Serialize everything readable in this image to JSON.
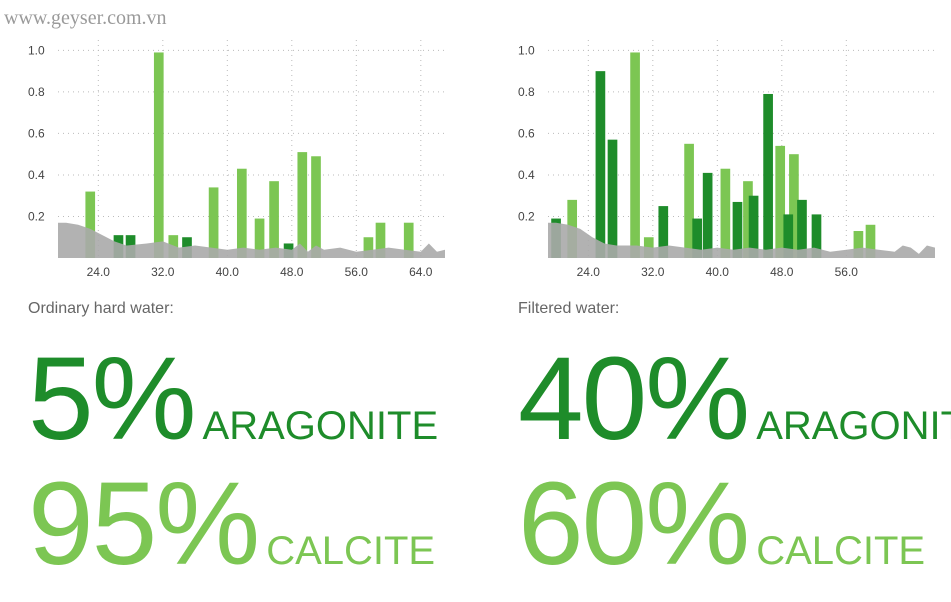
{
  "watermark": "www.geyser.com.vn",
  "colors": {
    "dark_green": "#1e8c2a",
    "light_green": "#7cc653",
    "baseline_gray": "#aaaaaa",
    "grid": "#bbbbbb"
  },
  "panels": [
    {
      "caption": "Ordinary hard water:",
      "stats": [
        {
          "value": "5%",
          "label": "ARAGONITE",
          "color": "#1e8c2a"
        },
        {
          "value": "95%",
          "label": "CALCITE",
          "color": "#7cc653"
        }
      ]
    },
    {
      "caption": "Filtered water:",
      "stats": [
        {
          "value": "40%",
          "label": "ARAGONITE",
          "color": "#1e8c2a"
        },
        {
          "value": "60%",
          "label": "CALCITE",
          "color": "#7cc653"
        }
      ]
    }
  ],
  "chart_data": [
    {
      "type": "bar",
      "title": "",
      "xlabel": "",
      "ylabel": "",
      "xlim": [
        19.0,
        67.0
      ],
      "ylim": [
        0.0,
        1.05
      ],
      "x_ticks": [
        "24.0",
        "32.0",
        "40.0",
        "48.0",
        "56.0",
        "64.0"
      ],
      "y_ticks": [
        "0.2",
        "0.4",
        "0.6",
        "0.8",
        "1.0"
      ],
      "grid": true,
      "series": [
        {
          "color": "light_green",
          "x": [
            23.0,
            31.5,
            33.3,
            38.3,
            41.8,
            44.0,
            45.8,
            49.3,
            51.0,
            57.5,
            59.0,
            62.5
          ],
          "values": [
            0.32,
            0.99,
            0.11,
            0.34,
            0.43,
            0.19,
            0.37,
            0.51,
            0.49,
            0.1,
            0.17,
            0.17
          ]
        },
        {
          "color": "dark_green",
          "x": [
            26.5,
            28.0,
            35.0,
            47.6
          ],
          "values": [
            0.11,
            0.11,
            0.1,
            0.07
          ]
        }
      ],
      "baseline_profile": {
        "x": [
          19.0,
          20.0,
          21.5,
          23.0,
          24.5,
          26.0,
          27.5,
          30.0,
          32.0,
          34.0,
          36.0,
          38.0,
          40.0,
          42.0,
          44.0,
          46.0,
          48.0,
          49.0,
          50.0,
          51.0,
          52.0,
          54.0,
          56.0,
          58.0,
          60.0,
          62.0,
          64.0,
          65.0,
          66.0,
          67.0
        ],
        "values": [
          0.17,
          0.17,
          0.16,
          0.14,
          0.11,
          0.08,
          0.06,
          0.07,
          0.08,
          0.05,
          0.06,
          0.05,
          0.04,
          0.05,
          0.04,
          0.05,
          0.04,
          0.07,
          0.03,
          0.06,
          0.04,
          0.05,
          0.03,
          0.04,
          0.05,
          0.04,
          0.03,
          0.07,
          0.03,
          0.04
        ]
      }
    },
    {
      "type": "bar",
      "title": "",
      "xlabel": "",
      "ylabel": "",
      "xlim": [
        19.0,
        67.0
      ],
      "ylim": [
        0.0,
        1.05
      ],
      "x_ticks": [
        "24.0",
        "32.0",
        "40.0",
        "48.0",
        "56.0"
      ],
      "y_ticks": [
        "0.2",
        "0.4",
        "0.6",
        "0.8",
        "1.0"
      ],
      "grid": true,
      "series": [
        {
          "color": "light_green",
          "x": [
            22.0,
            29.8,
            31.5,
            36.5,
            41.0,
            43.8,
            47.8,
            49.5,
            57.5,
            59.0
          ],
          "values": [
            0.28,
            0.99,
            0.1,
            0.55,
            0.43,
            0.37,
            0.54,
            0.5,
            0.13,
            0.16
          ]
        },
        {
          "color": "dark_green",
          "x": [
            20.0,
            25.5,
            27.0,
            33.3,
            37.5,
            38.8,
            42.5,
            44.5,
            46.3,
            48.8,
            50.5,
            52.3
          ],
          "values": [
            0.19,
            0.9,
            0.57,
            0.25,
            0.19,
            0.41,
            0.27,
            0.3,
            0.79,
            0.21,
            0.28,
            0.21
          ]
        }
      ],
      "baseline_profile": {
        "x": [
          19.0,
          20.0,
          21.5,
          23.0,
          24.5,
          26.0,
          27.5,
          30.0,
          32.0,
          34.0,
          36.0,
          38.0,
          40.0,
          42.0,
          44.0,
          46.0,
          48.0,
          50.0,
          52.0,
          54.0,
          56.0,
          58.0,
          60.0,
          62.0,
          63.0,
          64.0,
          65.0,
          66.0,
          67.0
        ],
        "values": [
          0.17,
          0.17,
          0.16,
          0.14,
          0.1,
          0.07,
          0.06,
          0.06,
          0.05,
          0.06,
          0.05,
          0.04,
          0.05,
          0.04,
          0.05,
          0.04,
          0.05,
          0.04,
          0.05,
          0.03,
          0.04,
          0.05,
          0.04,
          0.03,
          0.06,
          0.05,
          0.02,
          0.06,
          0.05
        ]
      }
    }
  ]
}
